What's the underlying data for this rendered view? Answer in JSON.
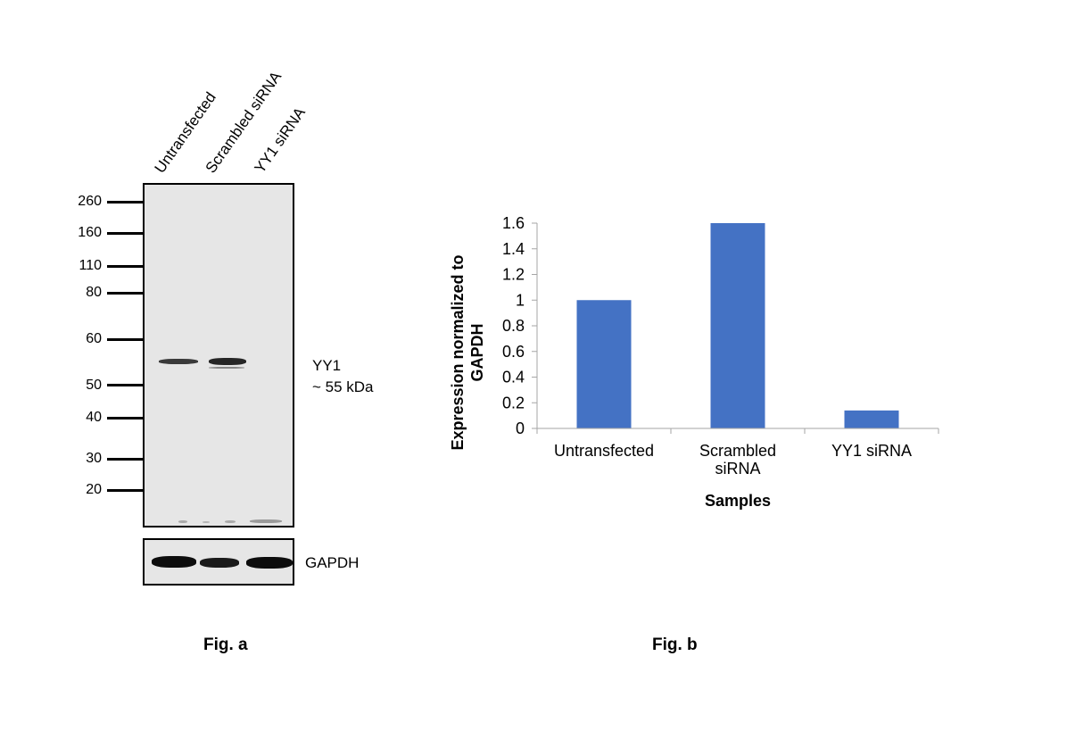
{
  "blot": {
    "lanes": [
      "Untransfected",
      "Scrambled siRNA",
      "YY1 siRNA"
    ],
    "markers": [
      "260",
      "160",
      "110",
      "80",
      "60",
      "50",
      "40",
      "30",
      "20"
    ],
    "target_label": "YY1",
    "target_size": "~ 55 kDa",
    "loading_control": "GAPDH",
    "figure_label": "Fig. a"
  },
  "chart_data": {
    "type": "bar",
    "categories": [
      "Untransfected",
      "Scrambled siRNA",
      "YY1 siRNA"
    ],
    "category_lines": [
      [
        "Untransfected"
      ],
      [
        "Scrambled",
        "siRNA"
      ],
      [
        "YY1 siRNA"
      ]
    ],
    "values": [
      1.0,
      1.6,
      0.14
    ],
    "xlabel": "Samples",
    "ylabel_lines": [
      "Expression  normalized to",
      "GAPDH"
    ],
    "ylim": [
      0,
      1.6
    ],
    "yticks": [
      "0",
      "0.2",
      "0.4",
      "0.6",
      "0.8",
      "1",
      "1.2",
      "1.4",
      "1.6"
    ],
    "bar_color": "#4472c4",
    "grid": false,
    "figure_label": "Fig. b"
  }
}
